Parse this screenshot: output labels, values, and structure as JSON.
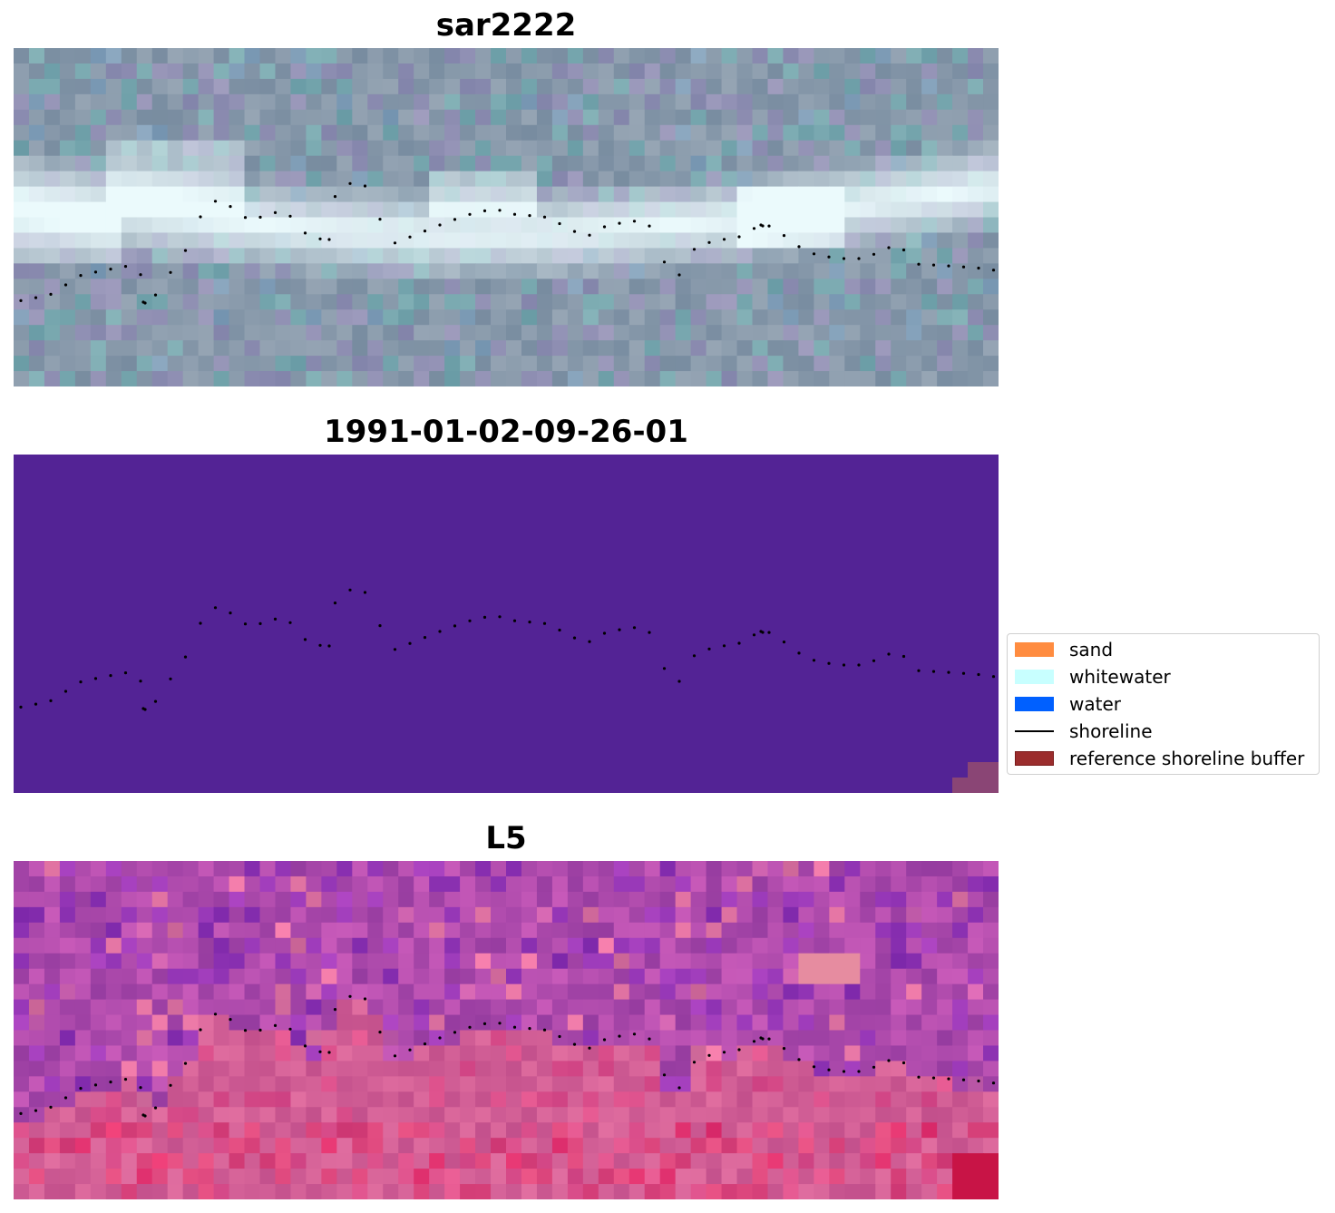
{
  "panels": [
    {
      "title": "sar2222",
      "kind": "sar"
    },
    {
      "title": "1991-01-02-09-26-01",
      "kind": "classification"
    },
    {
      "title": "L5",
      "kind": "landsat"
    }
  ],
  "legend": {
    "items": [
      {
        "label": "sand",
        "color": "#ff8c40",
        "type": "patch"
      },
      {
        "label": "whitewater",
        "color": "#c8ffff",
        "type": "patch"
      },
      {
        "label": "water",
        "color": "#0060ff",
        "type": "patch"
      },
      {
        "label": "shoreline",
        "color": "#000000",
        "type": "line"
      },
      {
        "label": "reference shoreline buffer",
        "color": "#9b2d2d",
        "type": "patch"
      }
    ]
  },
  "colors": {
    "class_fill": "#532395",
    "buffer": "#8a4575",
    "shoreline_points": "#000000"
  }
}
